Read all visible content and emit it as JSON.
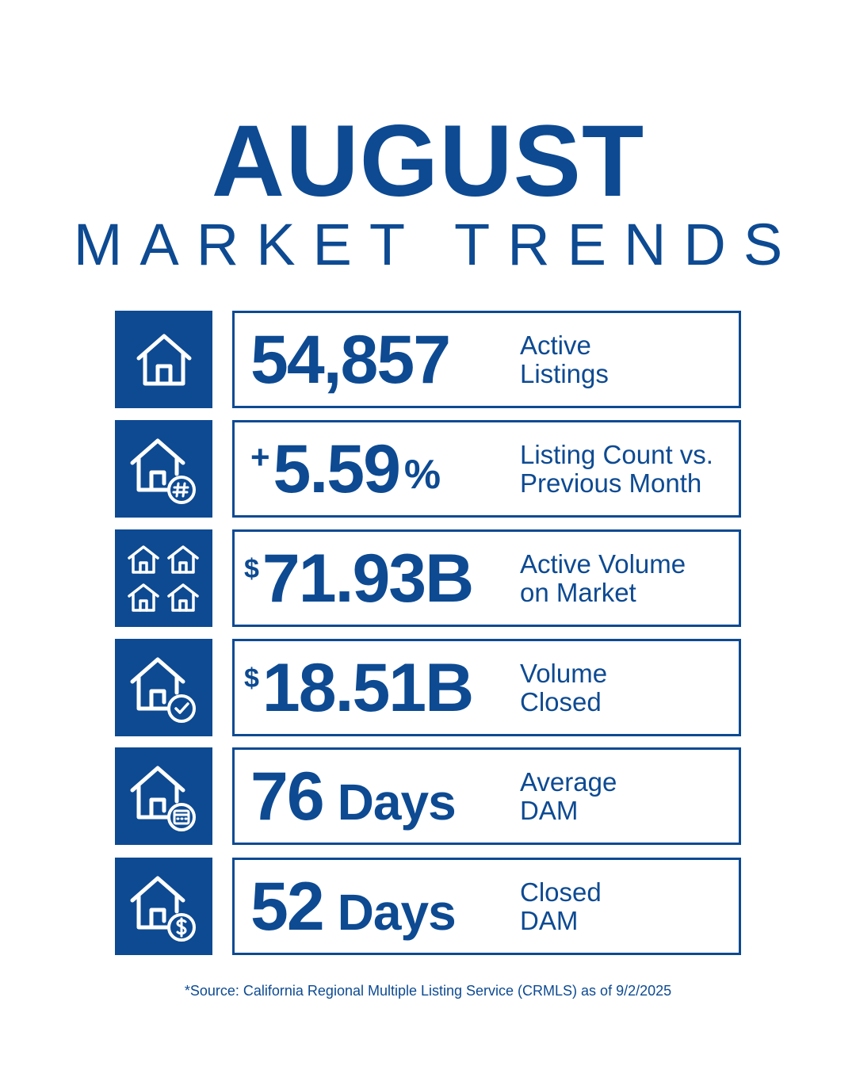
{
  "header": {
    "title": "AUGUST",
    "subtitle": "MARKET TRENDS"
  },
  "stats": [
    {
      "icon": "house-icon",
      "value": "54,857",
      "label_line1": "Active",
      "label_line2": "Listings"
    },
    {
      "icon": "house-number-icon",
      "prefix": "+",
      "value": "5.59",
      "suffix": "%",
      "label_line1": "Listing Count vs.",
      "label_line2": "Previous Month"
    },
    {
      "icon": "four-houses-icon",
      "prefix": "$",
      "value": "71.93B",
      "label_line1": "Active Volume",
      "label_line2": "on Market"
    },
    {
      "icon": "house-check-icon",
      "prefix": "$",
      "value": "18.51B",
      "label_line1": "Volume",
      "label_line2": "Closed"
    },
    {
      "icon": "house-calendar-icon",
      "value": "76",
      "unit": "Days",
      "label_line1": "Average",
      "label_line2": "DAM"
    },
    {
      "icon": "house-dollar-icon",
      "value": "52",
      "unit": "Days",
      "label_line1": "Closed",
      "label_line2": "DAM"
    }
  ],
  "footnote": "*Source: California Regional Multiple Listing Service (CRMLS) as of 9/2/2025",
  "colors": {
    "brand": "#0d4a92",
    "background": "#ffffff"
  }
}
